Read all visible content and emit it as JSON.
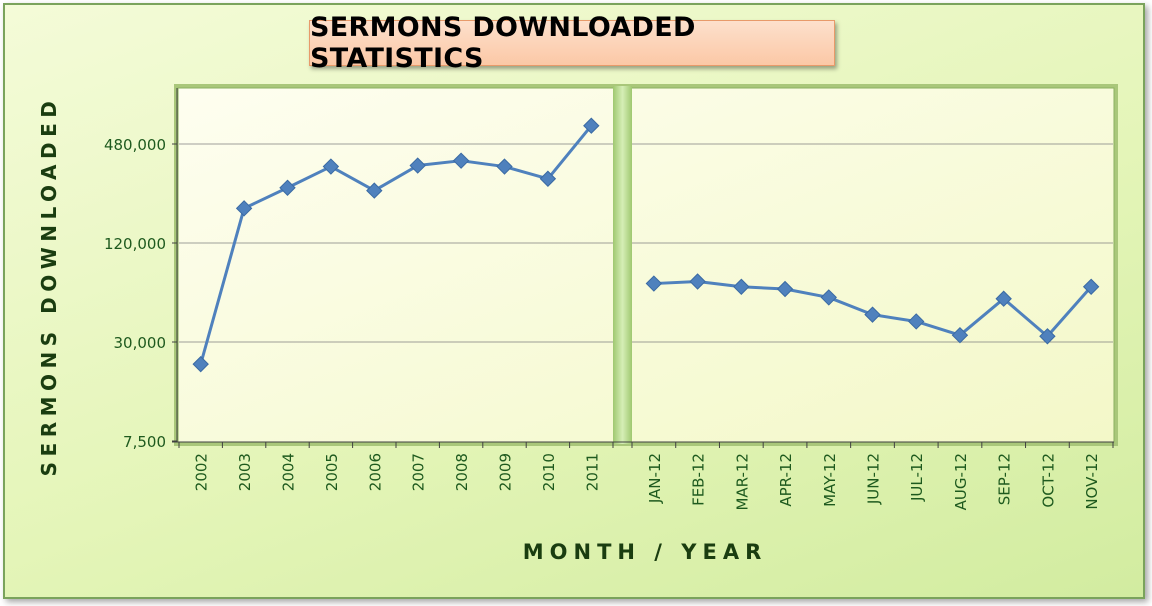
{
  "chart_data": {
    "type": "line",
    "title": "SERMONS DOWNLOADED STATISTICS",
    "xlabel": "MONTH / YEAR",
    "ylabel": "SERMONS DOWNLOADED",
    "yscale": "log",
    "ylim": [
      7500,
      700000
    ],
    "yticks": [
      7500,
      30000,
      120000,
      480000
    ],
    "ytick_labels": [
      "7,500",
      "30,000",
      "120,000",
      "480,000"
    ],
    "grid": true,
    "panels": [
      {
        "name": "yearly",
        "categories": [
          "2002",
          "2003",
          "2004",
          "2005",
          "2006",
          "2007",
          "2008",
          "2009",
          "2010",
          "2011"
        ],
        "values": [
          22000,
          195000,
          260000,
          350000,
          250000,
          355000,
          380000,
          350000,
          295000,
          620000
        ]
      },
      {
        "name": "monthly",
        "categories": [
          "JAN-12",
          "FEB-12",
          "MAR-12",
          "APR-12",
          "MAY-12",
          "JUN-12",
          "JUL-12",
          "AUG-12",
          "SEP-12",
          "OCT-12",
          "NOV-12"
        ],
        "values": [
          68000,
          70000,
          65000,
          63000,
          56000,
          44000,
          40000,
          33000,
          55000,
          32500,
          65000
        ]
      }
    ]
  },
  "colors": {
    "line": "#4f81bd",
    "marker": "#4f81bd",
    "tick_text": "#1e5a1e",
    "axis_title": "#1a3d10",
    "gridline": "#7f7f7f",
    "plot_bg": "#fdfde8",
    "divider": "#b8d890"
  }
}
